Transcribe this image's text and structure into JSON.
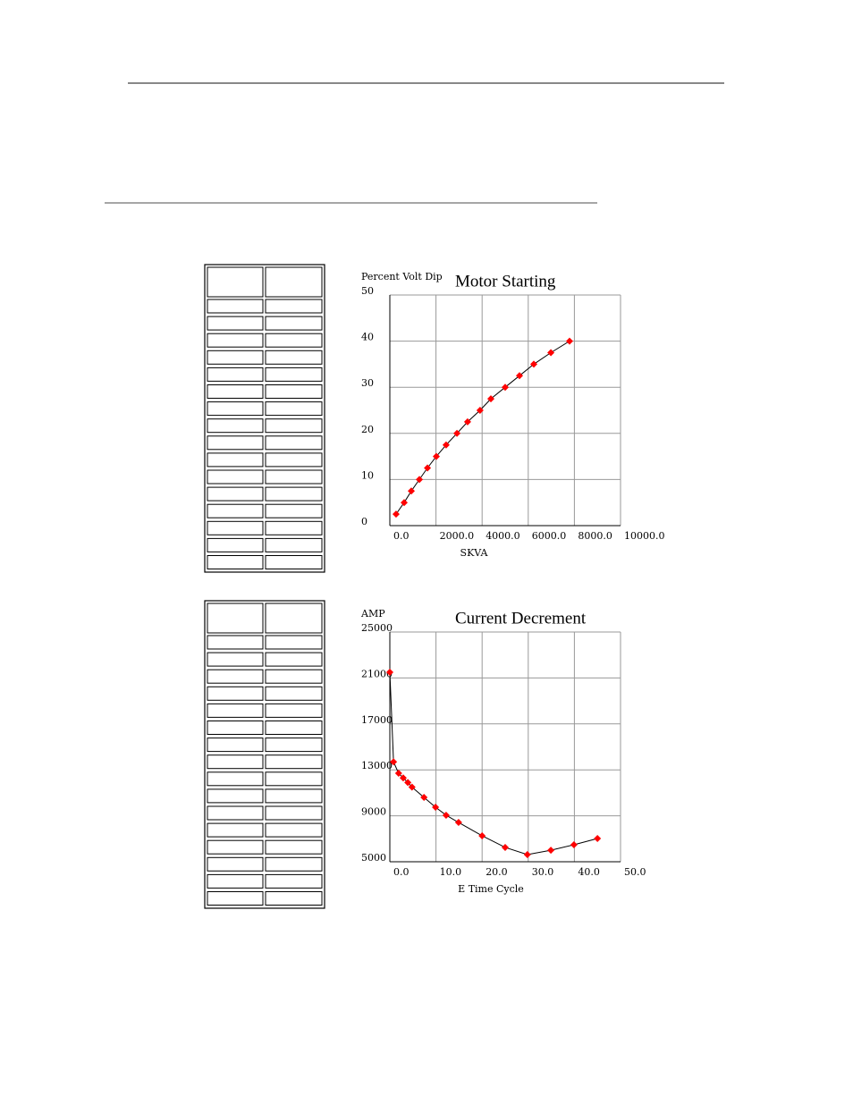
{
  "chart_data": [
    {
      "type": "line",
      "title": "Motor Starting",
      "y_label": "Percent Volt Dip",
      "x_label": "SKVA",
      "x": [
        270,
        620,
        930,
        1280,
        1630,
        2015,
        2440,
        2910,
        3370,
        3910,
        4380,
        5000,
        5620,
        6240,
        6980,
        7790
      ],
      "series": [
        {
          "color": "#ff0000",
          "values": [
            2.5,
            5,
            7.5,
            10,
            12.5,
            15,
            17.5,
            20,
            22.5,
            25,
            27.5,
            30,
            32.5,
            35,
            37.5,
            40
          ]
        }
      ],
      "xlim": [
        0,
        10000
      ],
      "ylim": [
        0,
        50
      ],
      "xticks": [
        {
          "value": 0,
          "label": "0.0"
        },
        {
          "value": 2000,
          "label": "2000.0"
        },
        {
          "value": 4000,
          "label": "4000.0"
        },
        {
          "value": 6000,
          "label": "6000.0"
        },
        {
          "value": 8000,
          "label": "8000.0"
        },
        {
          "value": 10000,
          "label": "10000.0"
        }
      ],
      "yticks": [
        0,
        10,
        20,
        30,
        40,
        50
      ],
      "grid": true
    },
    {
      "type": "line",
      "title": "Current Decrement",
      "y_label": "AMP",
      "x_label": "E Time Cycle",
      "x": [
        0,
        0.8,
        1.9,
        2.9,
        3.9,
        4.8,
        7.4,
        9.9,
        12.2,
        14.9,
        20,
        25,
        29.8,
        34.9,
        39.9,
        45
      ],
      "series": [
        {
          "color": "#ff0000",
          "values": [
            21500,
            13700,
            12700,
            12300,
            11900,
            11500,
            10600,
            9750,
            9050,
            8420,
            7260,
            6250,
            5620,
            6000,
            6480,
            7020
          ]
        }
      ],
      "xlim": [
        0,
        50
      ],
      "ylim": [
        5000,
        25000
      ],
      "xticks": [
        {
          "value": 0,
          "label": "0.0"
        },
        {
          "value": 10,
          "label": "10.0"
        },
        {
          "value": 20,
          "label": "20.0"
        },
        {
          "value": 30,
          "label": "30.0"
        },
        {
          "value": 40,
          "label": "40.0"
        },
        {
          "value": 50,
          "label": "50.0"
        }
      ],
      "yticks": [
        5000,
        9000,
        13000,
        17000,
        21000,
        25000
      ],
      "grid": true
    }
  ]
}
